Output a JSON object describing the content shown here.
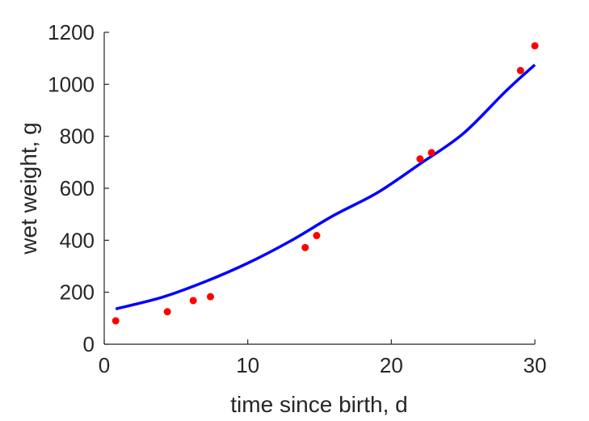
{
  "chart_data": {
    "type": "scatter",
    "xlabel": "time since birth, d",
    "ylabel": "wet weight, g",
    "xlim": [
      0,
      30
    ],
    "ylim": [
      0,
      1200
    ],
    "xticks": [
      0,
      10,
      20,
      30
    ],
    "yticks": [
      0,
      200,
      400,
      600,
      800,
      1000,
      1200
    ],
    "grid": false,
    "series": [
      {
        "kind": "points",
        "color": "#ff0000",
        "x": [
          0.8,
          4.4,
          6.2,
          7.4,
          14.0,
          14.8,
          22.0,
          22.8,
          29.0,
          30.0
        ],
        "y": [
          90,
          125,
          168,
          183,
          372,
          418,
          713,
          737,
          1053,
          1148
        ]
      },
      {
        "kind": "line",
        "color": "#0000ff",
        "x": [
          0.8,
          4,
          7,
          10,
          13,
          16,
          19,
          22,
          25,
          28,
          30
        ],
        "y": [
          136,
          180,
          240,
          312,
          398,
          496,
          582,
          694,
          810,
          975,
          1075
        ]
      }
    ]
  }
}
